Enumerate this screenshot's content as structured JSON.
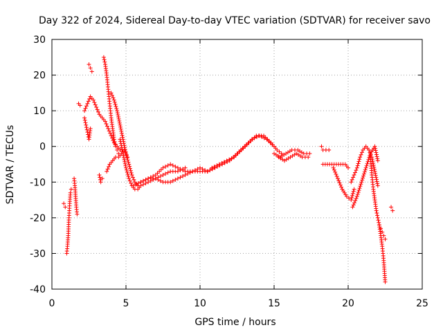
{
  "chart_data": {
    "type": "scatter",
    "title": "Day 322 of 2024, Sidereal Day-to-day VTEC variation (SDTVAR) for receiver savo",
    "xlabel": "GPS time / hours",
    "ylabel": "SDTVAR / TECUs",
    "xlim": [
      0,
      25
    ],
    "ylim": [
      -40,
      30
    ],
    "xticks": [
      0,
      5,
      10,
      15,
      20,
      25
    ],
    "yticks": [
      -40,
      -30,
      -20,
      -10,
      0,
      10,
      20,
      30
    ],
    "x_tick_labels": [
      "0",
      "5",
      "10",
      "15",
      "20",
      "25"
    ],
    "y_tick_labels": [
      "-40",
      "-30",
      "-20",
      "-10",
      "0",
      "10",
      "20",
      "30"
    ],
    "grid": true,
    "marker": "+",
    "color": "#ff0000",
    "series": [
      {
        "name": "SDTVAR",
        "segments": [
          {
            "x": [
              0.8,
              0.9
            ],
            "y": [
              -16,
              -17
            ]
          },
          {
            "x": [
              1.0,
              1.05,
              1.1,
              1.15,
              1.2,
              1.25,
              1.3
            ],
            "y": [
              -30,
              -28,
              -25,
              -20,
              -16,
              -13,
              -12
            ]
          },
          {
            "x": [
              1.5,
              1.55,
              1.6,
              1.65,
              1.7
            ],
            "y": [
              -9,
              -11,
              -14,
              -17,
              -19
            ]
          },
          {
            "x": [
              1.8,
              1.9
            ],
            "y": [
              12,
              11.5
            ]
          },
          {
            "x": [
              2.2,
              2.3,
              2.4,
              2.5,
              2.6
            ],
            "y": [
              8,
              6,
              4,
              2,
              5
            ]
          },
          {
            "x": [
              2.5,
              2.6,
              2.7
            ],
            "y": [
              23,
              22,
              21
            ]
          },
          {
            "x": [
              2.2,
              2.4,
              2.6,
              2.8,
              3.0,
              3.2,
              3.4,
              3.6,
              3.8,
              4.0,
              4.2,
              4.4,
              4.6
            ],
            "y": [
              10,
              12,
              14,
              13,
              11,
              9,
              8,
              7,
              5,
              3,
              1,
              0,
              -1
            ]
          },
          {
            "x": [
              3.2,
              3.3,
              3.4
            ],
            "y": [
              -8,
              -10,
              -9
            ]
          },
          {
            "x": [
              3.5,
              3.6,
              3.7,
              3.8,
              3.9,
              4.0,
              4.1,
              4.2,
              4.3,
              4.4,
              4.5
            ],
            "y": [
              25,
              23,
              20,
              16,
              12,
              8,
              5,
              2,
              0,
              -1,
              -2
            ]
          },
          {
            "x": [
              3.7,
              3.9,
              4.1,
              4.3,
              4.5,
              4.7,
              4.9,
              5.1
            ],
            "y": [
              -7,
              -5,
              -4,
              -3,
              -3,
              -2,
              -1,
              -3
            ]
          },
          {
            "x": [
              4.0,
              4.2,
              4.4,
              4.6,
              4.8,
              5.0,
              5.2,
              5.4,
              5.6,
              5.8
            ],
            "y": [
              15,
              13,
              10,
              6,
              2,
              -2,
              -5,
              -8,
              -10,
              -11
            ]
          },
          {
            "x": [
              4.6,
              4.8,
              5.0,
              5.2,
              5.4,
              5.6,
              5.8,
              6.0,
              6.5,
              7.0,
              7.5,
              8.0,
              8.5,
              9.0
            ],
            "y": [
              2,
              -2,
              -6,
              -9,
              -11,
              -12,
              -12,
              -11,
              -10,
              -9,
              -8,
              -7,
              -7,
              -6
            ]
          },
          {
            "x": [
              5.5,
              6.0,
              6.5,
              7.0,
              7.5,
              8.0,
              8.5,
              9.0,
              9.5,
              10.0,
              10.5
            ],
            "y": [
              -11,
              -10,
              -9,
              -8,
              -6,
              -5,
              -6,
              -7,
              -7,
              -6,
              -7
            ]
          },
          {
            "x": [
              6.0,
              6.5,
              7.0,
              7.5,
              8.0,
              8.5,
              9.0,
              9.5,
              10.0,
              10.5,
              11.0
            ],
            "y": [
              -10,
              -9,
              -9,
              -10,
              -10,
              -9,
              -8,
              -7,
              -7,
              -7,
              -6
            ]
          },
          {
            "x": [
              10.5,
              11.0,
              11.5,
              12.0,
              12.5,
              13.0,
              13.5,
              14.0,
              14.5,
              15.0
            ],
            "y": [
              -7,
              -6,
              -5,
              -4,
              -2,
              0,
              2,
              3,
              2,
              0
            ]
          },
          {
            "x": [
              10.8,
              11.3,
              11.8,
              12.3,
              12.8,
              13.3,
              13.8,
              14.3,
              14.8,
              15.2,
              15.5
            ],
            "y": [
              -6,
              -5,
              -4,
              -3,
              -1,
              1,
              3,
              3,
              1,
              -1,
              -2
            ]
          },
          {
            "x": [
              15.0,
              15.4,
              15.8,
              16.2,
              16.6,
              17.0,
              17.4
            ],
            "y": [
              -2,
              -3,
              -2,
              -1,
              -1,
              -2,
              -2
            ]
          },
          {
            "x": [
              15.3,
              15.7,
              16.1,
              16.5,
              16.9,
              17.3
            ],
            "y": [
              -3,
              -4,
              -3,
              -2,
              -3,
              -3
            ]
          },
          {
            "x": [
              18.2,
              18.3,
              18.7
            ],
            "y": [
              0,
              -1,
              -1
            ]
          },
          {
            "x": [
              18.3,
              18.9,
              19.2,
              19.5,
              19.8,
              20.0
            ],
            "y": [
              -5,
              -5,
              -5,
              -5,
              -5,
              -6
            ]
          },
          {
            "x": [
              19.0,
              19.3,
              19.6,
              19.9,
              20.2,
              20.4
            ],
            "y": [
              -6,
              -9,
              -12,
              -14,
              -15,
              -12
            ]
          },
          {
            "x": [
              20.3,
              20.6,
              20.9,
              21.2,
              21.5,
              21.8,
              22.0
            ],
            "y": [
              -17,
              -14,
              -10,
              -6,
              -2,
              0,
              -4
            ]
          },
          {
            "x": [
              20.2,
              20.4,
              20.6,
              20.8,
              21.0,
              21.2,
              21.4,
              21.6,
              21.8,
              22.0
            ],
            "y": [
              -10,
              -8,
              -6,
              -3,
              -1,
              0,
              -1,
              -3,
              -7,
              -11
            ]
          },
          {
            "x": [
              21.5,
              21.6,
              21.7,
              21.8,
              21.9,
              22.0,
              22.1,
              22.2,
              22.3,
              22.4,
              22.5
            ],
            "y": [
              -3,
              -8,
              -12,
              -15,
              -18,
              -20,
              -22,
              -25,
              -28,
              -32,
              -38
            ]
          },
          {
            "x": [
              22.1,
              22.2,
              22.3,
              22.4,
              22.5
            ],
            "y": [
              -22,
              -23,
              -24,
              -25,
              -26
            ]
          },
          {
            "x": [
              22.9,
              23.0
            ],
            "y": [
              -17,
              -18
            ]
          }
        ]
      }
    ]
  }
}
